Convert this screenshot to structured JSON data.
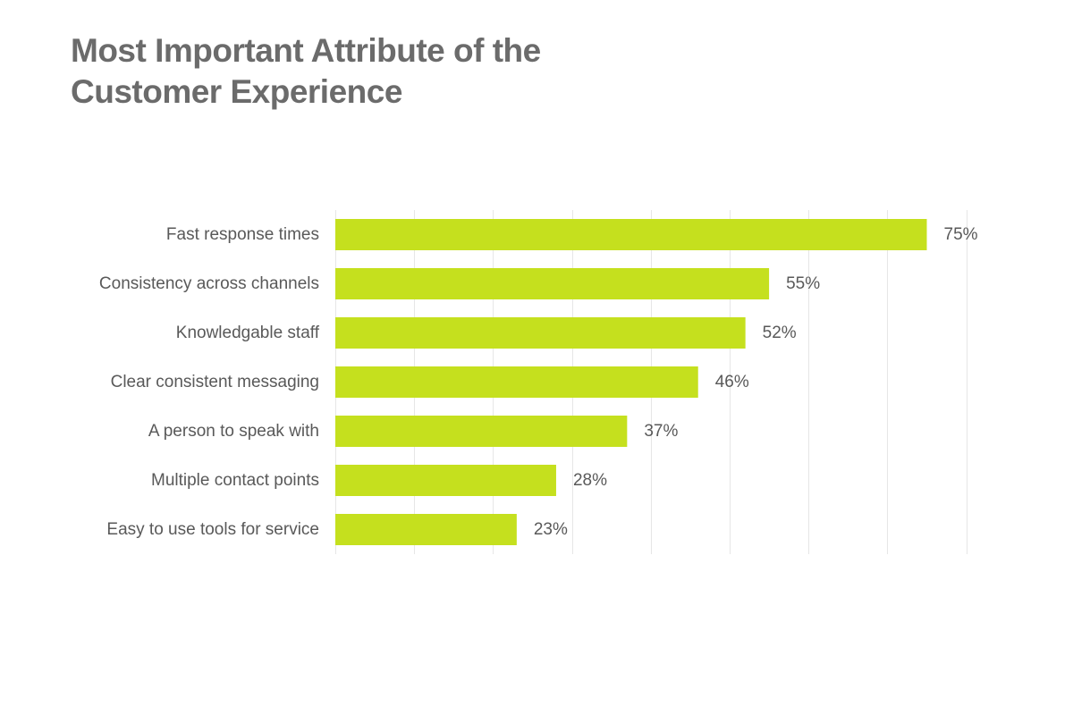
{
  "title": {
    "line1": "Most Important Attribute of the",
    "line2": "Customer Experience"
  },
  "colors": {
    "bar": "#c5e01e",
    "grid": "#e6e6e6",
    "title": "#6b6b6b",
    "label": "#595959"
  },
  "chart_data": {
    "type": "bar",
    "orientation": "horizontal",
    "title": "Most Important Attribute of the Customer Experience",
    "categories": [
      "Fast response times",
      "Consistency across channels",
      "Knowledgable staff",
      "Clear consistent messaging",
      "A person to speak with",
      "Multiple contact points",
      "Easy to use tools for service"
    ],
    "values": [
      75,
      55,
      52,
      46,
      37,
      28,
      23
    ],
    "value_labels": [
      "75%",
      "55%",
      "52%",
      "46%",
      "37%",
      "28%",
      "23%"
    ],
    "unit": "%",
    "xlim": [
      0,
      80
    ],
    "grid": true,
    "legend": "none"
  }
}
